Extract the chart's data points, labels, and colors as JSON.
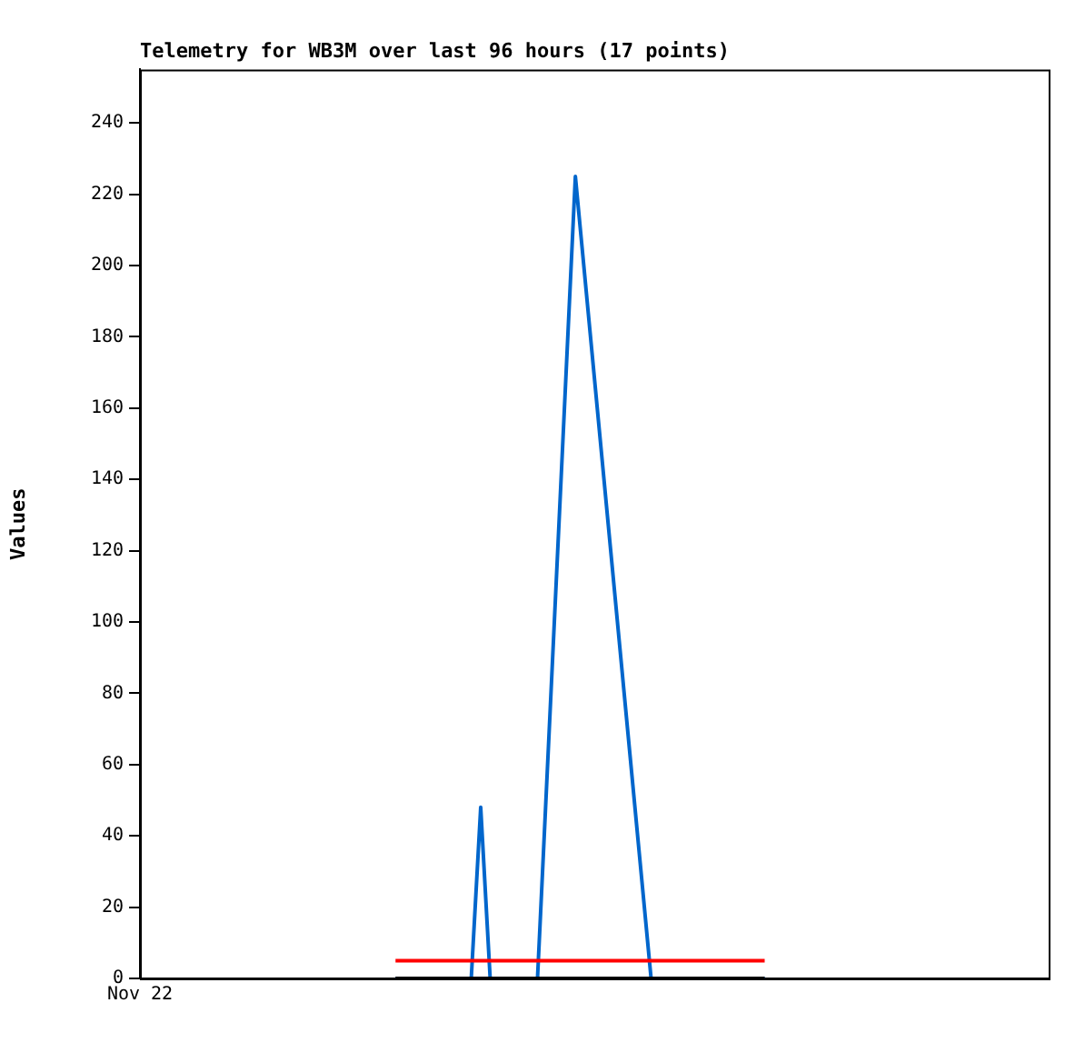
{
  "chart_data": {
    "type": "line",
    "title": "Telemetry for WB3M over last 96 hours (17 points)",
    "ylabel": "Values",
    "categories": [
      "Nov 22",
      null,
      null,
      null,
      null,
      null,
      null,
      null,
      null,
      null,
      null,
      null,
      null,
      null,
      null,
      null,
      null,
      null,
      null,
      null,
      null,
      null,
      null,
      null,
      null,
      null,
      null,
      null,
      null,
      null,
      null,
      null,
      null,
      null,
      null,
      null,
      null,
      null,
      null,
      null,
      null,
      null,
      null,
      null,
      null,
      null,
      null,
      null,
      null,
      null,
      null,
      null,
      null,
      null,
      null,
      null,
      null,
      null,
      null,
      null,
      null,
      null,
      null,
      null,
      null,
      null,
      null,
      null,
      null,
      null,
      null,
      null,
      null,
      null,
      null,
      null,
      null,
      null,
      null,
      null,
      null,
      null,
      null,
      null,
      null,
      null,
      null,
      null,
      null,
      null,
      null,
      null,
      null,
      null,
      null,
      null,
      null
    ],
    "ylim": [
      0,
      255
    ],
    "yticks": [
      0,
      20,
      40,
      60,
      80,
      100,
      120,
      140,
      160,
      180,
      200,
      220,
      240
    ],
    "grid": false,
    "legend": false,
    "marker": "none",
    "line_style": "solid",
    "series": [
      {
        "color": "#000000",
        "values": [
          null,
          null,
          null,
          null,
          null,
          null,
          null,
          null,
          null,
          null,
          null,
          null,
          null,
          null,
          null,
          null,
          null,
          null,
          null,
          null,
          null,
          null,
          null,
          null,
          null,
          null,
          null,
          0,
          null,
          null,
          null,
          null,
          null,
          null,
          null,
          null,
          null,
          null,
          null,
          null,
          null,
          null,
          null,
          null,
          null,
          null,
          null,
          null,
          null,
          null,
          null,
          null,
          null,
          null,
          null,
          null,
          null,
          null,
          null,
          null,
          null,
          null,
          null,
          null,
          null,
          null,
          0,
          null,
          null,
          null,
          null,
          null,
          null,
          null,
          null,
          null,
          null,
          null,
          null,
          null,
          null,
          null,
          null,
          null,
          null,
          null,
          null,
          null,
          null,
          null,
          null,
          null,
          null,
          null,
          null,
          null,
          null
        ]
      },
      {
        "color": "#ff0000",
        "values": [
          null,
          null,
          null,
          null,
          null,
          null,
          null,
          null,
          null,
          null,
          null,
          null,
          null,
          null,
          null,
          null,
          null,
          null,
          null,
          null,
          null,
          null,
          null,
          null,
          null,
          null,
          null,
          5,
          null,
          null,
          null,
          null,
          null,
          null,
          null,
          null,
          null,
          null,
          null,
          null,
          null,
          null,
          null,
          null,
          null,
          null,
          null,
          null,
          null,
          null,
          null,
          null,
          null,
          null,
          null,
          null,
          null,
          null,
          null,
          null,
          null,
          null,
          null,
          null,
          null,
          null,
          5,
          null,
          null,
          null,
          null,
          null,
          null,
          null,
          null,
          null,
          null,
          null,
          null,
          null,
          null,
          null,
          null,
          null,
          null,
          null,
          null,
          null,
          null,
          null,
          null,
          null,
          null,
          null,
          null,
          null,
          null
        ]
      },
      {
        "color": "#0066cc",
        "values": [
          null,
          null,
          null,
          null,
          null,
          null,
          null,
          null,
          null,
          null,
          null,
          null,
          null,
          null,
          null,
          null,
          null,
          null,
          null,
          null,
          null,
          null,
          null,
          null,
          null,
          null,
          null,
          0,
          null,
          null,
          null,
          null,
          null,
          null,
          null,
          0,
          48,
          0,
          null,
          null,
          null,
          null,
          0,
          null,
          null,
          null,
          225,
          null,
          null,
          null,
          null,
          null,
          null,
          null,
          0,
          null,
          null,
          null,
          null,
          null,
          null,
          null,
          null,
          null,
          null,
          null,
          0,
          null,
          null,
          null,
          null,
          null,
          null,
          null,
          null,
          null,
          null,
          null,
          null,
          null,
          null,
          null,
          null,
          null,
          null,
          null,
          null,
          null,
          null,
          null,
          null,
          null,
          null,
          null,
          null,
          null,
          null
        ]
      }
    ]
  }
}
